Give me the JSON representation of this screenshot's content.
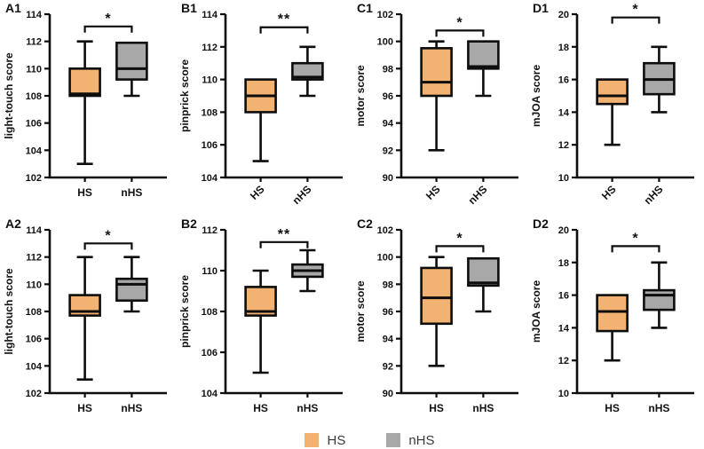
{
  "figure": {
    "legend": [
      {
        "label": "HS",
        "color": "#F2B272"
      },
      {
        "label": "nHS",
        "color": "#A8A8A8"
      }
    ],
    "line_color": "#0d0d0d",
    "text_color": "#111111"
  },
  "chart_data": [
    {
      "id": "A1",
      "type": "box",
      "ylabel": "light-touch score",
      "ylim": [
        102,
        114
      ],
      "ytick_step": 2,
      "categories": [
        "HS",
        "nHS"
      ],
      "x_label_rotation": 0,
      "significance": "*",
      "sig_y": 113.1,
      "series": [
        {
          "name": "HS",
          "color": "#F2B272",
          "min": 103,
          "q1": 108,
          "median": 108.15,
          "q3": 110,
          "max": 112
        },
        {
          "name": "nHS",
          "color": "#A8A8A8",
          "min": 108,
          "q1": 109.2,
          "median": 110,
          "q3": 111.9,
          "max": 111.9
        }
      ]
    },
    {
      "id": "B1",
      "type": "box",
      "ylabel": "pinprick score",
      "ylim": [
        104,
        114
      ],
      "ytick_step": 2,
      "categories": [
        "HS",
        "nHS"
      ],
      "x_label_rotation": 45,
      "significance": "**",
      "sig_y": 113.2,
      "series": [
        {
          "name": "HS",
          "color": "#F2B272",
          "min": 105,
          "q1": 108,
          "median": 109,
          "q3": 110,
          "max": 110
        },
        {
          "name": "nHS",
          "color": "#A8A8A8",
          "min": 109,
          "q1": 110,
          "median": 110.15,
          "q3": 111,
          "max": 112
        }
      ]
    },
    {
      "id": "C1",
      "type": "box",
      "ylabel": "motor score",
      "ylim": [
        90,
        102
      ],
      "ytick_step": 2,
      "categories": [
        "HS",
        "nHS"
      ],
      "x_label_rotation": 45,
      "significance": "*",
      "sig_y": 100.8,
      "series": [
        {
          "name": "HS",
          "color": "#F2B272",
          "min": 92,
          "q1": 96,
          "median": 97,
          "q3": 99.5,
          "max": 100
        },
        {
          "name": "nHS",
          "color": "#A8A8A8",
          "min": 96,
          "q1": 98,
          "median": 98.15,
          "q3": 100,
          "max": 100
        }
      ]
    },
    {
      "id": "D1",
      "type": "box",
      "ylabel": "mJOA score",
      "ylim": [
        10,
        20
      ],
      "ytick_step": 2,
      "categories": [
        "HS",
        "nHS"
      ],
      "x_label_rotation": 45,
      "significance": "*",
      "sig_y": 19.8,
      "series": [
        {
          "name": "HS",
          "color": "#F2B272",
          "min": 12,
          "q1": 14.5,
          "median": 15,
          "q3": 16,
          "max": 16
        },
        {
          "name": "nHS",
          "color": "#A8A8A8",
          "min": 14,
          "q1": 15.1,
          "median": 16,
          "q3": 17,
          "max": 18
        }
      ]
    },
    {
      "id": "A2",
      "type": "box",
      "ylabel": "light-touch score",
      "ylim": [
        102,
        114
      ],
      "ytick_step": 2,
      "categories": [
        "HS",
        "nHS"
      ],
      "x_label_rotation": 0,
      "significance": "*",
      "sig_y": 113.0,
      "series": [
        {
          "name": "HS",
          "color": "#F2B272",
          "min": 103,
          "q1": 107.7,
          "median": 108,
          "q3": 109.2,
          "max": 112
        },
        {
          "name": "nHS",
          "color": "#A8A8A8",
          "min": 108,
          "q1": 108.8,
          "median": 110,
          "q3": 110.4,
          "max": 112
        }
      ]
    },
    {
      "id": "B2",
      "type": "box",
      "ylabel": "pinprick score",
      "ylim": [
        104,
        112
      ],
      "ytick_step": 2,
      "categories": [
        "HS",
        "nHS"
      ],
      "x_label_rotation": 0,
      "significance": "**",
      "sig_y": 111.4,
      "series": [
        {
          "name": "HS",
          "color": "#F2B272",
          "min": 105,
          "q1": 107.8,
          "median": 108,
          "q3": 109.2,
          "max": 110
        },
        {
          "name": "nHS",
          "color": "#A8A8A8",
          "min": 109,
          "q1": 109.7,
          "median": 110,
          "q3": 110.3,
          "max": 111
        }
      ]
    },
    {
      "id": "C2",
      "type": "box",
      "ylabel": "motor score",
      "ylim": [
        90,
        102
      ],
      "ytick_step": 2,
      "categories": [
        "HS",
        "nHS"
      ],
      "x_label_rotation": 0,
      "significance": "*",
      "sig_y": 100.8,
      "series": [
        {
          "name": "HS",
          "color": "#F2B272",
          "min": 92,
          "q1": 95.1,
          "median": 97,
          "q3": 99.2,
          "max": 100
        },
        {
          "name": "nHS",
          "color": "#A8A8A8",
          "min": 96,
          "q1": 97.9,
          "median": 98.1,
          "q3": 99.9,
          "max": 99.9
        }
      ]
    },
    {
      "id": "D2",
      "type": "box",
      "ylabel": "mJOA score",
      "ylim": [
        10,
        20
      ],
      "ytick_step": 2,
      "categories": [
        "HS",
        "nHS"
      ],
      "x_label_rotation": 0,
      "significance": "*",
      "sig_y": 19.0,
      "series": [
        {
          "name": "HS",
          "color": "#F2B272",
          "min": 12,
          "q1": 13.8,
          "median": 15,
          "q3": 16,
          "max": 16
        },
        {
          "name": "nHS",
          "color": "#A8A8A8",
          "min": 14,
          "q1": 15.1,
          "median": 16,
          "q3": 16.3,
          "max": 18
        }
      ]
    }
  ]
}
